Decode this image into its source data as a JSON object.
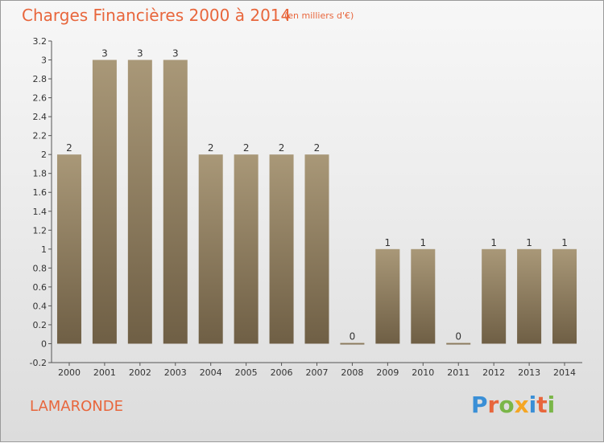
{
  "header": {
    "title": "Charges Financières 2000 à 2014",
    "unit": "(en milliers d'€)"
  },
  "footer": {
    "commune": "LAMARONDE",
    "brand_letters": [
      "P",
      "r",
      "o",
      "x",
      "i",
      "t",
      "i"
    ],
    "brand_colors": [
      "#3a8fd6",
      "#e8663c",
      "#7ab648",
      "#f5a623",
      "#3a8fd6",
      "#e8663c",
      "#7ab648"
    ]
  },
  "chart_data": {
    "type": "bar",
    "categories": [
      "2000",
      "2001",
      "2002",
      "2003",
      "2004",
      "2005",
      "2006",
      "2007",
      "2008",
      "2009",
      "2010",
      "2011",
      "2012",
      "2013",
      "2014"
    ],
    "values": [
      2,
      3,
      3,
      3,
      2,
      2,
      2,
      2,
      0,
      1,
      1,
      0,
      1,
      1,
      1
    ],
    "data_labels": [
      "2",
      "3",
      "3",
      "3",
      "2",
      "2",
      "2",
      "2",
      "0",
      "1",
      "1",
      "0",
      "1",
      "1",
      "1"
    ],
    "ylim": [
      -0.2,
      3.2
    ],
    "yticks": [
      "-0.2",
      "0",
      "0.2",
      "0.4",
      "0.6",
      "0.8",
      "1",
      "1.2",
      "1.4",
      "1.6",
      "1.8",
      "2",
      "2.2",
      "2.4",
      "2.6",
      "2.8",
      "3",
      "3.2"
    ],
    "ytick_values": [
      -0.2,
      0,
      0.2,
      0.4,
      0.6,
      0.8,
      1,
      1.2,
      1.4,
      1.6,
      1.8,
      2,
      2.2,
      2.4,
      2.6,
      2.8,
      3,
      3.2
    ],
    "grid": false,
    "bar_color_top": "#a99878",
    "bar_color_bottom": "#6f5f45"
  }
}
